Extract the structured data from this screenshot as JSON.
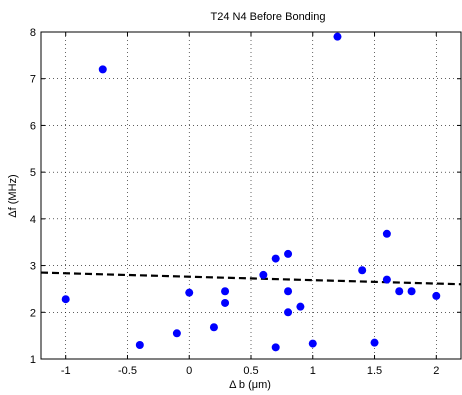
{
  "chart_data": {
    "type": "scatter",
    "title": "T24 N4 Before Bonding",
    "xlabel": "Δ b (μm)",
    "ylabel": "Δf (MHz)",
    "xlim": [
      -1.2,
      2.2
    ],
    "ylim": [
      1,
      8
    ],
    "xticks": [
      -1,
      -0.5,
      0,
      0.5,
      1,
      1.5,
      2
    ],
    "xtick_labels": [
      "-1",
      "-0.5",
      "0",
      "0.5",
      "1",
      "1.5",
      "2"
    ],
    "yticks": [
      1,
      2,
      3,
      4,
      5,
      6,
      7,
      8
    ],
    "ytick_labels": [
      "1",
      "2",
      "3",
      "4",
      "5",
      "6",
      "7",
      "8"
    ],
    "grid": true,
    "marker_color": "#0000ff",
    "fit_line_color": "#000000",
    "series": [
      {
        "points": [
          [
            -1.0,
            2.28
          ],
          [
            -0.7,
            7.2
          ],
          [
            -0.4,
            1.3
          ],
          [
            -0.1,
            1.55
          ],
          [
            0.0,
            2.42
          ],
          [
            0.2,
            1.68
          ],
          [
            0.29,
            2.45
          ],
          [
            0.29,
            2.2
          ],
          [
            0.6,
            2.8
          ],
          [
            0.7,
            3.15
          ],
          [
            0.7,
            1.25
          ],
          [
            0.8,
            3.25
          ],
          [
            0.8,
            2.45
          ],
          [
            0.8,
            2.0
          ],
          [
            0.9,
            2.12
          ],
          [
            1.0,
            1.33
          ],
          [
            1.2,
            7.9
          ],
          [
            1.4,
            2.9
          ],
          [
            1.5,
            1.35
          ],
          [
            1.6,
            3.68
          ],
          [
            1.6,
            2.7
          ],
          [
            1.7,
            2.45
          ],
          [
            1.8,
            2.45
          ],
          [
            2.0,
            2.35
          ]
        ]
      }
    ],
    "fit_line": {
      "style": "dashed",
      "points": [
        [
          -1.2,
          2.85
        ],
        [
          2.2,
          2.6
        ]
      ]
    }
  }
}
